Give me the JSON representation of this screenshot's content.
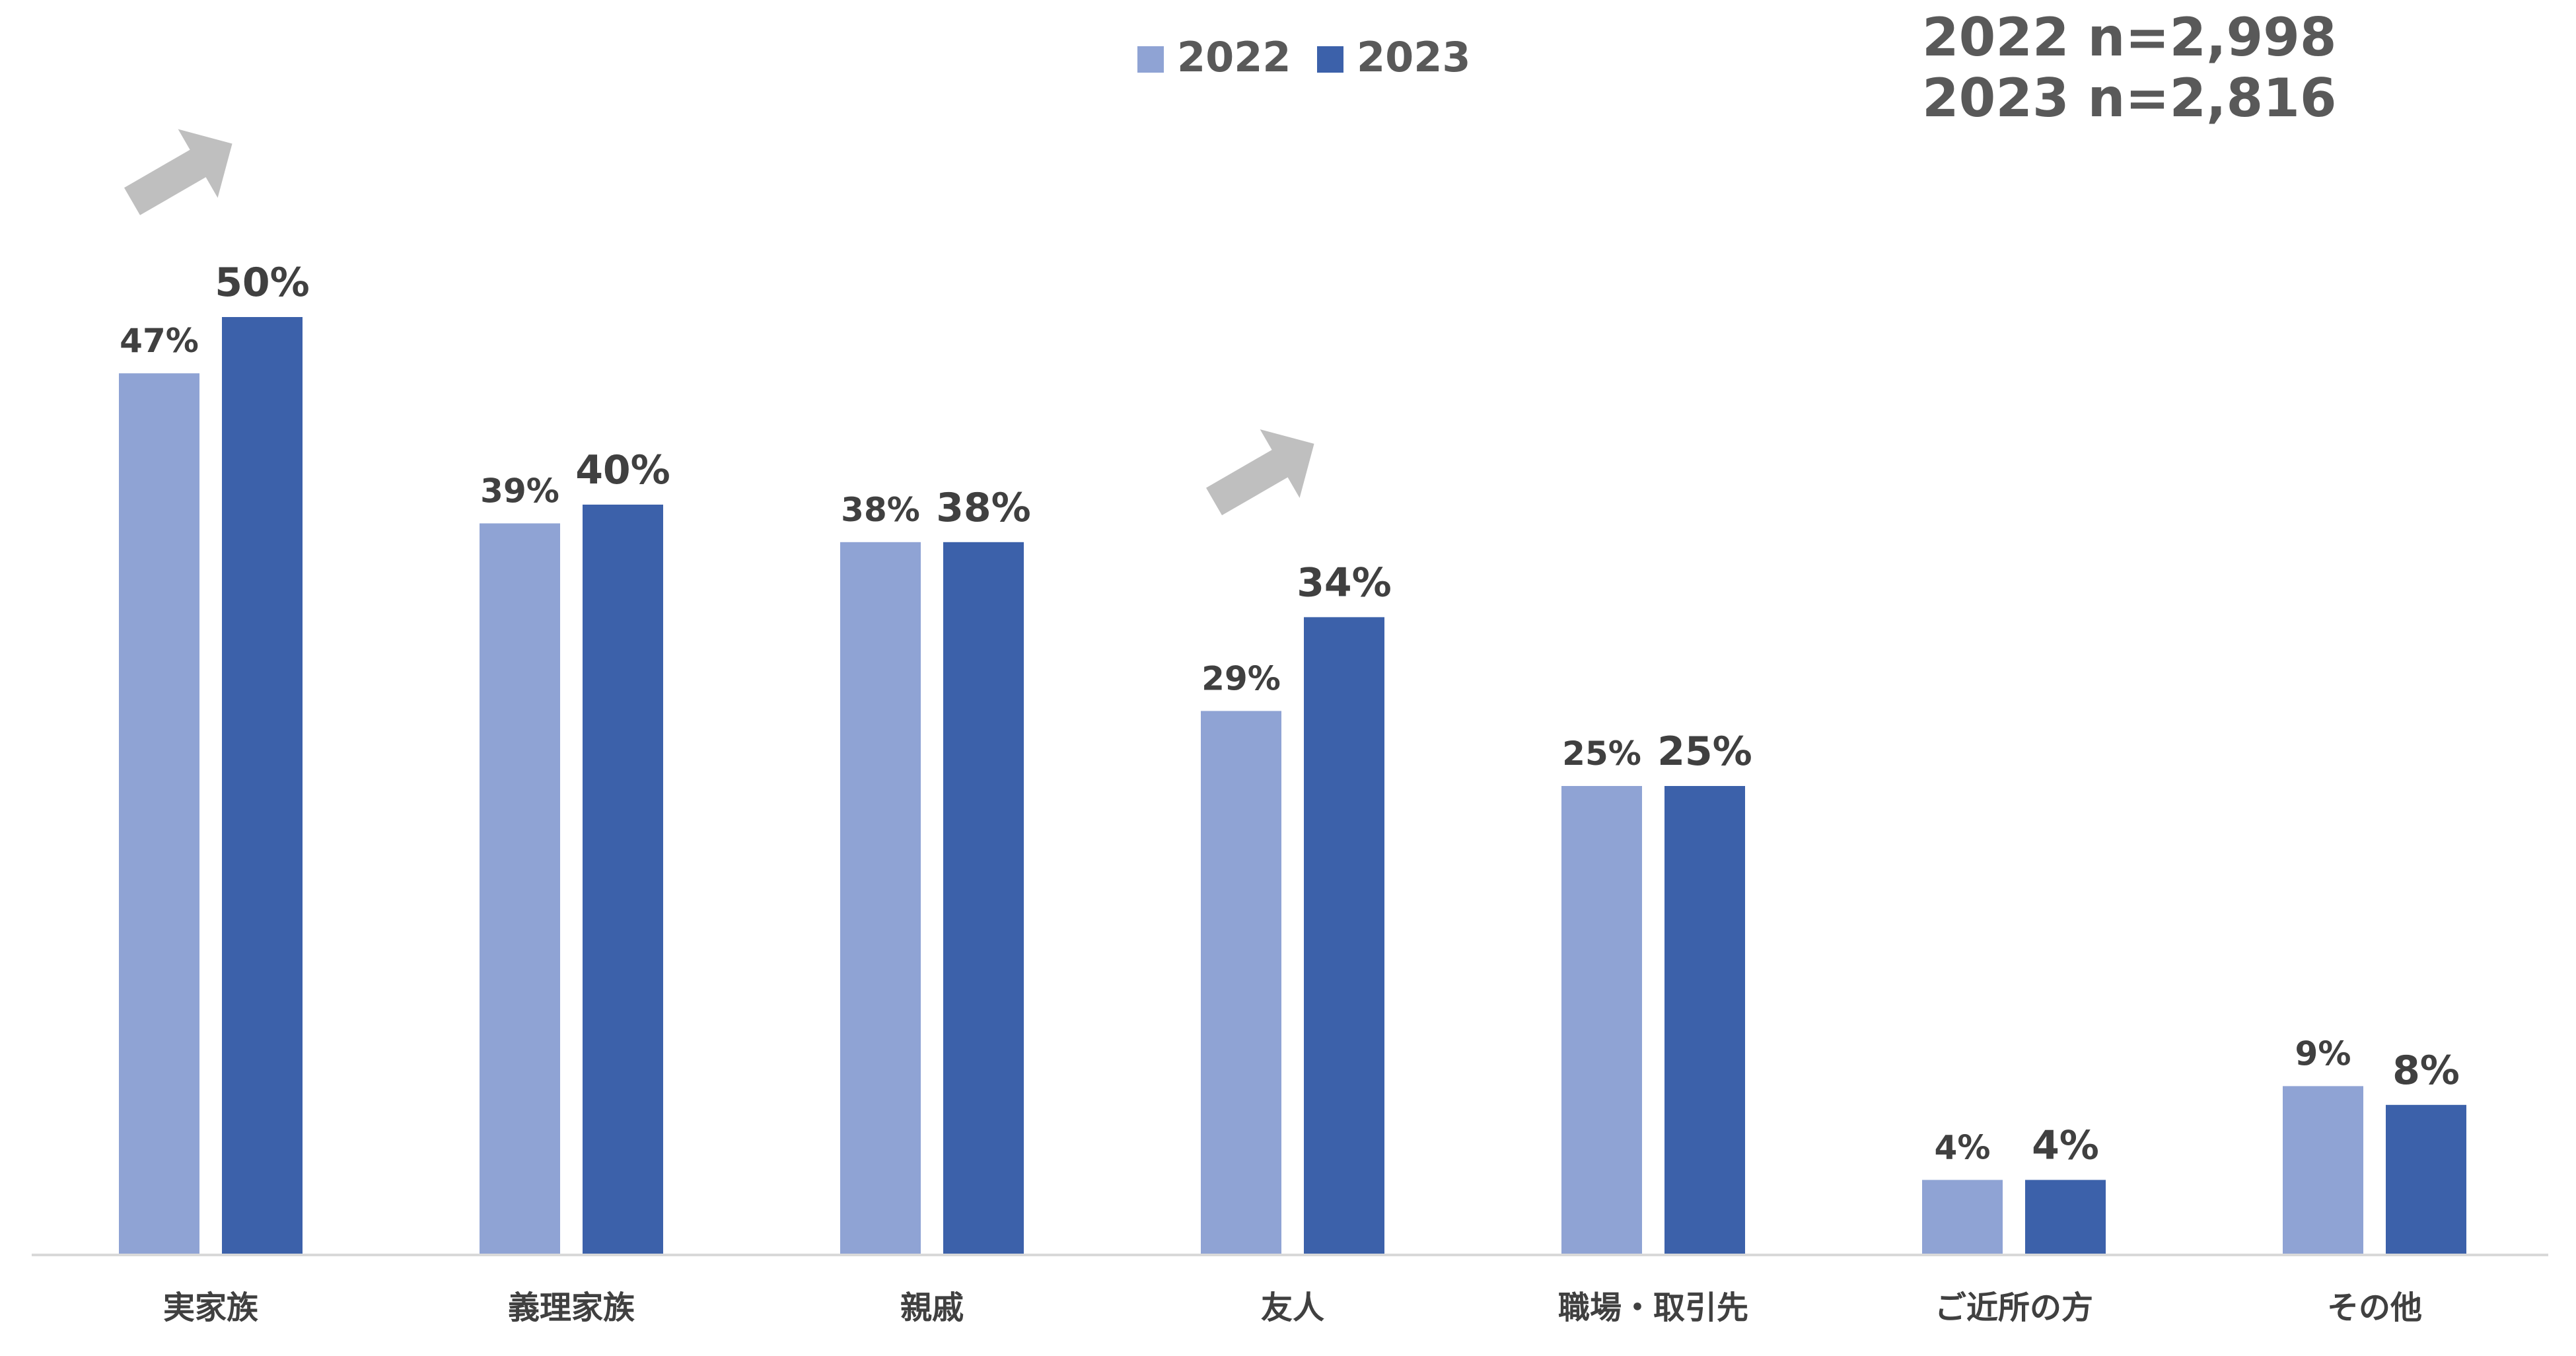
{
  "chart_data": {
    "type": "bar",
    "categories": [
      "実家族",
      "義理家族",
      "親戚",
      "友人",
      "職場・取引先",
      "ご近所の方",
      "その他"
    ],
    "series": [
      {
        "name": "2022",
        "values": [
          47,
          39,
          38,
          29,
          25,
          4,
          9
        ],
        "labels": [
          "47%",
          "39%",
          "38%",
          "29%",
          "25%",
          "4%",
          "9%"
        ],
        "color": "#8FA3D4"
      },
      {
        "name": "2023",
        "values": [
          50,
          40,
          38,
          34,
          25,
          4,
          8
        ],
        "labels": [
          "50%",
          "40%",
          "38%",
          "34%",
          "25%",
          "4%",
          "8%"
        ],
        "color": "#3C61AA"
      }
    ],
    "sample_sizes": [
      "2022 n=2,998",
      "2023 n=2,816"
    ],
    "trend_arrows": [
      "実家族",
      "友人"
    ],
    "title": "",
    "xlabel": "",
    "ylabel": "",
    "ylim": [
      0,
      60
    ],
    "grid": false,
    "legend": "top-center",
    "axis_color": "#D9D9D9",
    "arrow_color": "#BFBFBF"
  }
}
